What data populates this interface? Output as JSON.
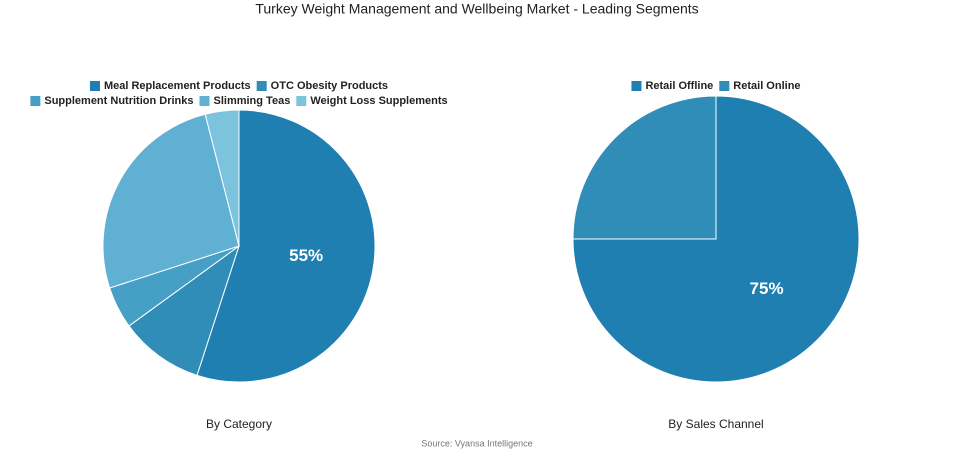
{
  "title": "Turkey Weight Management and Wellbeing Market - Leading Segments",
  "source": "Source: Vyansa Intelligence",
  "chart_data": [
    {
      "type": "pie",
      "title": "By Category",
      "categories": [
        "Meal Replacement Products",
        "OTC Obesity Products",
        "Supplement Nutrition Drinks",
        "Slimming Teas",
        "Weight Loss Supplements"
      ],
      "values": [
        55,
        10,
        5,
        26,
        4
      ],
      "value_labels": [
        "55%",
        null,
        null,
        null,
        null
      ],
      "colors": [
        "#1f7fb0",
        "#2f8db8",
        "#46a0c6",
        "#5fb0d2",
        "#7cc4de"
      ]
    },
    {
      "type": "pie",
      "title": "By Sales Channel",
      "categories": [
        "Retail Offline",
        "Retail Online"
      ],
      "values": [
        75,
        25
      ],
      "value_labels": [
        "75%",
        null
      ],
      "colors": [
        "#1f7fb0",
        "#2f8db8"
      ]
    }
  ]
}
